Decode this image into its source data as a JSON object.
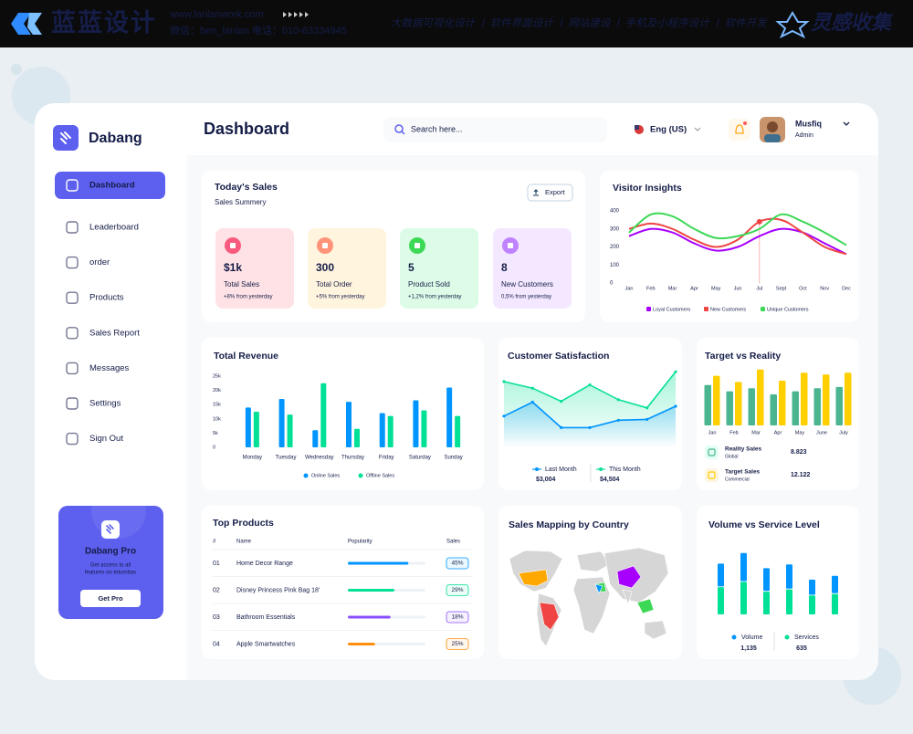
{
  "banner": {
    "brand": "蓝蓝设计",
    "url": "www.lanlanwork.com",
    "contact": "微信：ben_lanlan    电话：010-63334945",
    "services": [
      "大数据可视化设计",
      "软件界面设计",
      "网站建设",
      "手机及小程序设计",
      "软件开发"
    ],
    "tag": "灵感收集"
  },
  "sidebar": {
    "brand": "Dabang",
    "menu": [
      "Dashboard",
      "Leaderboard",
      "order",
      "Products",
      "Sales Report",
      "Messages",
      "Settings",
      "Sign Out"
    ],
    "promo": {
      "title": "Dabang Pro",
      "text": [
        "Get access to all",
        "features on tetumbas"
      ],
      "button": "Get Pro"
    }
  },
  "header": {
    "title": "Dashboard",
    "search": "Search here...",
    "language": "Eng (US)",
    "user": {
      "name": "Musfiq",
      "role": "Admin"
    }
  },
  "today_sales": {
    "title": "Today's Sales",
    "subtitle": "Sales Summery",
    "export": "Export",
    "cards": [
      {
        "value": "$1k",
        "label": "Total Sales",
        "change": "+8% from yesterday",
        "color": "#fa5a7d",
        "bg": "#ffe2e5"
      },
      {
        "value": "300",
        "label": "Total Order",
        "change": "+5% from yesterday",
        "color": "#ff947a",
        "bg": "#fff4de"
      },
      {
        "value": "5",
        "label": "Product Sold",
        "change": "+1,2% from yesterday",
        "color": "#3cd856",
        "bg": "#dcfce7"
      },
      {
        "value": "8",
        "label": "New Customers",
        "change": "0,5% from yesterday",
        "color": "#bf83ff",
        "bg": "#f3e8ff"
      }
    ]
  },
  "chart_data": [
    {
      "type": "line",
      "title": "Visitor Insights",
      "categories": [
        "Jan",
        "Feb",
        "Mar",
        "Apr",
        "May",
        "Jun",
        "Jul",
        "Sept",
        "Oct",
        "Nov",
        "Dec"
      ],
      "series": [
        {
          "name": "Loyal Customers",
          "color": "#a700ff",
          "values": [
            260,
            300,
            280,
            220,
            180,
            200,
            260,
            300,
            280,
            220,
            160
          ]
        },
        {
          "name": "New Customers",
          "color": "#ef4444",
          "values": [
            300,
            330,
            300,
            240,
            200,
            240,
            340,
            350,
            280,
            200,
            160
          ]
        },
        {
          "name": "Unique Customers",
          "color": "#3cd856",
          "values": [
            280,
            380,
            370,
            300,
            250,
            260,
            300,
            380,
            340,
            280,
            210
          ]
        }
      ],
      "ylim": [
        0,
        400
      ],
      "yticks": [
        0,
        100,
        200,
        300,
        400
      ],
      "grid": false,
      "highlight": {
        "series": 1,
        "index": 6
      }
    },
    {
      "type": "bar",
      "title": "Total Revenue",
      "categories": [
        "Monday",
        "Tuesday",
        "Wednesday",
        "Thursday",
        "Friday",
        "Saturday",
        "Sunday"
      ],
      "series": [
        {
          "name": "Online Sales",
          "color": "#0095ff",
          "values": [
            14000,
            17000,
            6000,
            16000,
            12000,
            16500,
            21000
          ]
        },
        {
          "name": "Offline Sales",
          "color": "#00e096",
          "values": [
            12500,
            11500,
            22500,
            6500,
            11000,
            13000,
            11000
          ]
        }
      ],
      "ylim": [
        0,
        25000
      ],
      "yticks": [
        0,
        {
          "value": 5000,
          "label": "5k"
        },
        {
          "value": 10000,
          "label": "10k"
        },
        {
          "value": 15000,
          "label": "15k"
        },
        {
          "value": 20000,
          "label": "20k"
        },
        {
          "value": 25000,
          "label": "25k"
        }
      ],
      "grid": false
    },
    {
      "type": "area",
      "title": "Customer Satisfaction",
      "series": [
        {
          "name": "Last Month",
          "color": "#0095ff",
          "values": [
            38,
            55,
            24,
            24,
            33,
            34,
            50
          ],
          "total": "$3,004"
        },
        {
          "name": "This Month",
          "color": "#07e098",
          "values": [
            80,
            72,
            56,
            76,
            58,
            48,
            92
          ],
          "total": "$4,504"
        }
      ],
      "ylim": [
        0,
        100
      ]
    },
    {
      "type": "bar",
      "title": "Target vs Reality",
      "categories": [
        "Jan",
        "Feb",
        "Mar",
        "Apr",
        "May",
        "June",
        "July"
      ],
      "series": [
        {
          "name": "Reality Sales",
          "subtitle": "Global",
          "total": "8.823",
          "color": "#4ab58e",
          "values": [
            65,
            55,
            60,
            50,
            55,
            60,
            62
          ]
        },
        {
          "name": "Target Sales",
          "subtitle": "Commercial",
          "total": "12.122",
          "color": "#ffcf00",
          "values": [
            80,
            70,
            90,
            72,
            85,
            82,
            85
          ]
        }
      ],
      "ylim": [
        0,
        100
      ]
    },
    {
      "type": "stacked-bar",
      "title": "Volume vs Service Level",
      "series": [
        {
          "name": "Services",
          "color": "#00e096",
          "values": [
            36,
            43,
            30,
            33,
            25,
            27
          ],
          "total": "635"
        },
        {
          "name": "Volume",
          "color": "#0095ff",
          "values": [
            30,
            37,
            30,
            32,
            20,
            23
          ],
          "total": "1,135"
        }
      ],
      "ylim": [
        0,
        100
      ]
    }
  ],
  "top_products": {
    "title": "Top Products",
    "columns": [
      "#",
      "Name",
      "Popularity",
      "Sales"
    ],
    "rows": [
      {
        "rank": "01",
        "name": "Home Decor Range",
        "popularity": 78,
        "sales": "45%",
        "color": "#0095ff"
      },
      {
        "rank": "02",
        "name": "Disney Princess Pink Bag 18'",
        "popularity": 60,
        "sales": "29%",
        "color": "#00e096"
      },
      {
        "rank": "03",
        "name": "Bathroom Essentials",
        "popularity": 55,
        "sales": "18%",
        "color": "#884dff"
      },
      {
        "rank": "04",
        "name": "Apple Smartwatches",
        "popularity": 35,
        "sales": "25%",
        "color": "#ff8f0d"
      }
    ]
  },
  "map": {
    "title": "Sales Mapping by Country"
  }
}
